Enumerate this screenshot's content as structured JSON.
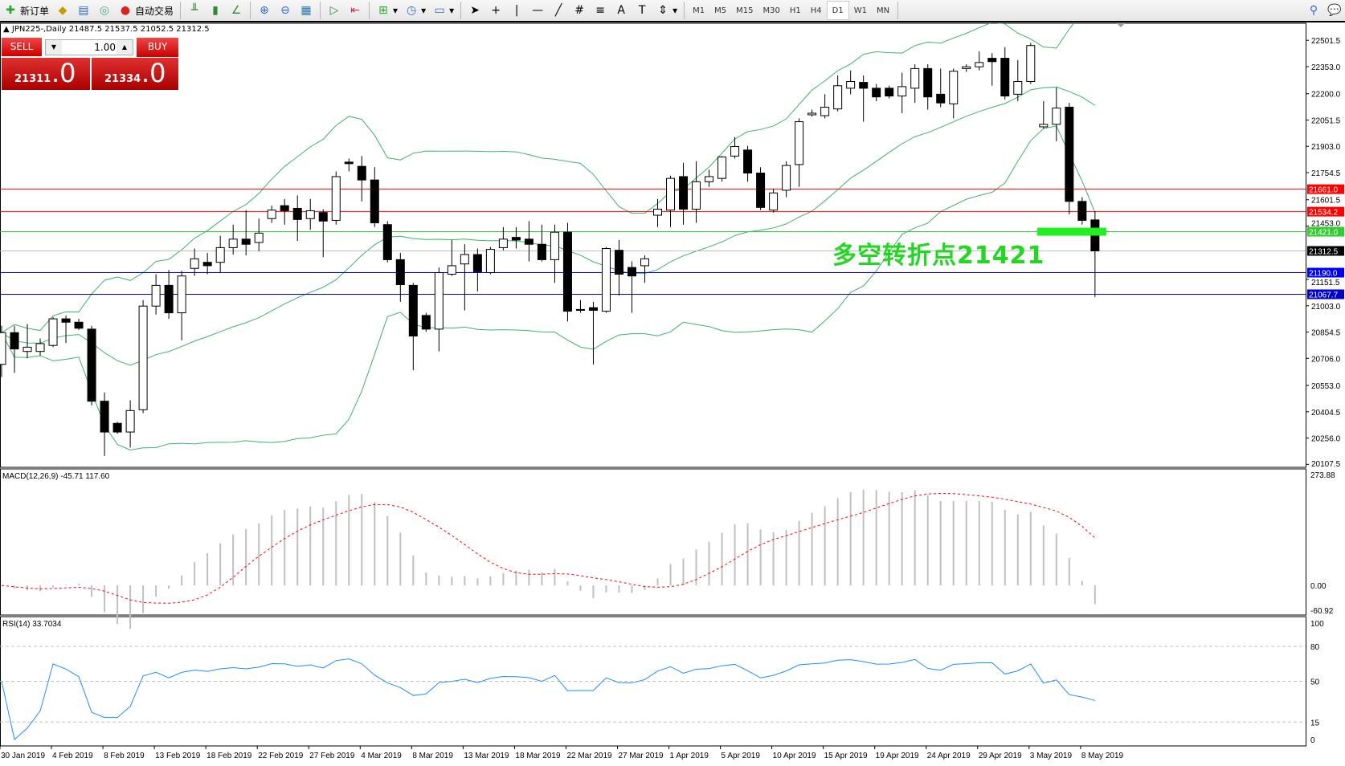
{
  "toolbar": {
    "new_order": "新订单",
    "auto_trading": "自动交易",
    "timeframes": [
      "M1",
      "M5",
      "M15",
      "M30",
      "H1",
      "H4",
      "D1",
      "W1",
      "MN"
    ],
    "active_timeframe": "D1"
  },
  "chart": {
    "symbol_line": "JPN225-,Daily  21487.5 21537.5 21052.5 21312.5",
    "sell_label": "SELL",
    "buy_label": "BUY",
    "lot": "1.00",
    "sell_price_main": "21311",
    "sell_price_frac": ".0",
    "buy_price_main": "21334",
    "buy_price_frac": ".0",
    "annotation": "多空转折点21421",
    "macd_label": "MACD(12,26,9) -45.71 117.60",
    "rsi_label": "RSI(14) 33.7034"
  },
  "chart_data": {
    "type": "candlestick",
    "price_ticks": [
      "22501.5",
      "22353.0",
      "22200.0",
      "22051.5",
      "21903.0",
      "21754.5",
      "21601.5",
      "21453.0",
      "21151.5",
      "21003.0",
      "20854.5",
      "20706.0",
      "20553.0",
      "20404.5",
      "20256.0",
      "20107.5"
    ],
    "date_labels": [
      "30 Jan 2019",
      "4 Feb 2019",
      "8 Feb 2019",
      "13 Feb 2019",
      "18 Feb 2019",
      "22 Feb 2019",
      "27 Feb 2019",
      "4 Mar 2019",
      "8 Mar 2019",
      "13 Mar 2019",
      "18 Mar 2019",
      "22 Mar 2019",
      "27 Mar 2019",
      "1 Apr 2019",
      "5 Apr 2019",
      "10 Apr 2019",
      "15 Apr 2019",
      "19 Apr 2019",
      "24 Apr 2019",
      "29 Apr 2019",
      "3 May 2019",
      "8 May 2019"
    ],
    "ohlc": [
      [
        20672,
        20890,
        20600,
        20851
      ],
      [
        20851,
        20890,
        20624,
        20759
      ],
      [
        20745,
        20900,
        20706,
        20769
      ],
      [
        20745,
        20818,
        20721,
        20789
      ],
      [
        20779,
        20939,
        20769,
        20929
      ],
      [
        20929,
        20948,
        20793,
        20910
      ],
      [
        20910,
        20929,
        20866,
        20876
      ],
      [
        20871,
        20890,
        20440,
        20464
      ],
      [
        20464,
        20513,
        20155,
        20290
      ],
      [
        20339,
        20348,
        20280,
        20290
      ],
      [
        20290,
        20469,
        20203,
        20411
      ],
      [
        20416,
        21035,
        20397,
        21001
      ],
      [
        21001,
        21181,
        20953,
        21118
      ],
      [
        21118,
        21205,
        20929,
        20963
      ],
      [
        20963,
        21200,
        20808,
        21171
      ],
      [
        21214,
        21326,
        21171,
        21268
      ],
      [
        21248,
        21301,
        21181,
        21229
      ],
      [
        21248,
        21398,
        21190,
        21331
      ],
      [
        21331,
        21461,
        21292,
        21379
      ],
      [
        21379,
        21543,
        21287,
        21350
      ],
      [
        21360,
        21495,
        21311,
        21413
      ],
      [
        21495,
        21568,
        21471,
        21543
      ],
      [
        21568,
        21606,
        21461,
        21539
      ],
      [
        21553,
        21626,
        21369,
        21490
      ],
      [
        21495,
        21606,
        21432,
        21539
      ],
      [
        21529,
        21548,
        21277,
        21481
      ],
      [
        21485,
        21761,
        21461,
        21732
      ],
      [
        21814,
        21834,
        21761,
        21805
      ],
      [
        21790,
        21848,
        21592,
        21713
      ],
      [
        21713,
        21785,
        21447,
        21471
      ],
      [
        21461,
        21481,
        21248,
        21263
      ],
      [
        21263,
        21301,
        21026,
        21122
      ],
      [
        21118,
        21132,
        20639,
        20832
      ],
      [
        20948,
        20963,
        20856,
        20871
      ],
      [
        20871,
        21219,
        20745,
        21190
      ],
      [
        21181,
        21374,
        21171,
        21229
      ],
      [
        21239,
        21350,
        20977,
        21292
      ],
      [
        21292,
        21326,
        21084,
        21195
      ],
      [
        21190,
        21335,
        21181,
        21321
      ],
      [
        21331,
        21447,
        21316,
        21379
      ],
      [
        21389,
        21447,
        21326,
        21374
      ],
      [
        21379,
        21481,
        21253,
        21350
      ],
      [
        21350,
        21461,
        21253,
        21263
      ],
      [
        21263,
        21461,
        21132,
        21418
      ],
      [
        21418,
        21471,
        20914,
        20972
      ],
      [
        20982,
        21035,
        20963,
        20977
      ],
      [
        20992,
        21026,
        20672,
        20977
      ],
      [
        20972,
        21335,
        20963,
        21326
      ],
      [
        21316,
        21374,
        21060,
        21181
      ],
      [
        21219,
        21253,
        20963,
        21171
      ],
      [
        21229,
        21287,
        21132,
        21268
      ],
      [
        21514,
        21606,
        21447,
        21548
      ],
      [
        21543,
        21737,
        21447,
        21722
      ],
      [
        21732,
        21810,
        21461,
        21548
      ],
      [
        21548,
        21819,
        21471,
        21703
      ],
      [
        21703,
        21771,
        21674,
        21732
      ],
      [
        21722,
        21848,
        21703,
        21843
      ],
      [
        21848,
        21955,
        21834,
        21902
      ],
      [
        21882,
        21906,
        21703,
        21752
      ],
      [
        21752,
        21785,
        21543,
        21558
      ],
      [
        21543,
        21664,
        21529,
        21640
      ],
      [
        21655,
        21819,
        21616,
        21795
      ],
      [
        21800,
        22061,
        21674,
        22042
      ],
      [
        22081,
        22110,
        22071,
        22090
      ],
      [
        22076,
        22197,
        22061,
        22124
      ],
      [
        22114,
        22303,
        22100,
        22245
      ],
      [
        22231,
        22332,
        22197,
        22269
      ],
      [
        22264,
        22303,
        22042,
        22231
      ],
      [
        22231,
        22255,
        22158,
        22182
      ],
      [
        22231,
        22245,
        22173,
        22187
      ],
      [
        22187,
        22318,
        22090,
        22240
      ],
      [
        22231,
        22366,
        22148,
        22342
      ],
      [
        22342,
        22366,
        22110,
        22182
      ],
      [
        22197,
        22342,
        22124,
        22148
      ],
      [
        22143,
        22342,
        22061,
        22327
      ],
      [
        22342,
        22366,
        22323,
        22352
      ],
      [
        22352,
        22439,
        22332,
        22376
      ],
      [
        22400,
        22429,
        22245,
        22381
      ],
      [
        22400,
        22463,
        22168,
        22187
      ],
      [
        22197,
        22390,
        22158,
        22269
      ],
      [
        22269,
        22487,
        22255,
        22472
      ],
      [
        22013,
        22158,
        22003,
        22027
      ],
      [
        22027,
        22235,
        21931,
        22119
      ],
      [
        22124,
        22148,
        21519,
        21592
      ],
      [
        21592,
        21616,
        21461,
        21485
      ],
      [
        21487.5,
        21537.5,
        21052.5,
        21312.5
      ]
    ],
    "price_range": [
      20107.5,
      22620
    ],
    "horizontal_lines": [
      {
        "price": "21661.0",
        "color": "#ff0000"
      },
      {
        "price": "21534.2",
        "color": "#ff0000"
      },
      {
        "price": "21421.0",
        "color": "#33cc33"
      },
      {
        "price": "21312.5",
        "color": "#000000",
        "current": true
      },
      {
        "price": "21190.0",
        "color": "#0000ff"
      },
      {
        "price": "21067.7",
        "color": "#0000cc"
      }
    ],
    "highlight_color": "#22ee22",
    "band_color": "#3cb371",
    "macd_ticks": [
      "273.88",
      "0.00",
      "-60.92"
    ],
    "macd_range": [
      -60.92,
      273.88
    ],
    "rsi_ticks": [
      "100",
      "80",
      "50",
      "15",
      "0"
    ],
    "rsi_levels": [
      80,
      50,
      15
    ]
  }
}
